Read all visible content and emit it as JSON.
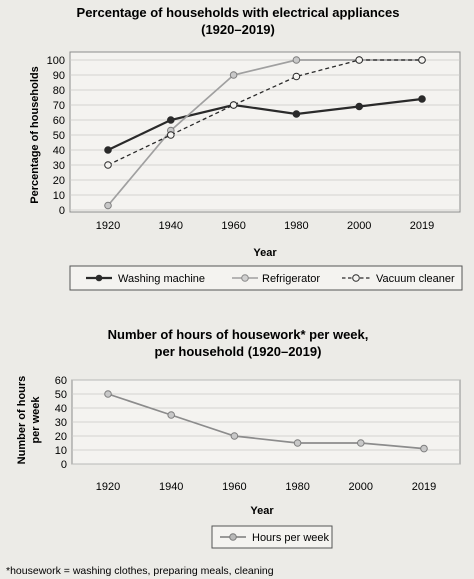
{
  "chart_data": [
    {
      "type": "line",
      "title": "Percentage of households with electrical appliances",
      "subtitle": "(1920–2019)",
      "xlabel": "Year",
      "ylabel": "Percentage of households",
      "categories": [
        "1920",
        "1940",
        "1960",
        "1980",
        "2000",
        "2019"
      ],
      "ylim": [
        0,
        100
      ],
      "yticks": [
        "0",
        "10",
        "20",
        "30",
        "40",
        "50",
        "60",
        "70",
        "80",
        "90",
        "100"
      ],
      "series": [
        {
          "name": "Washing machine",
          "values": [
            40,
            60,
            70,
            64,
            69,
            74
          ],
          "color": "#2a2a2a",
          "style": "solid",
          "marker": "filled"
        },
        {
          "name": "Refrigerator",
          "values": [
            3,
            53,
            90,
            100,
            100,
            100
          ],
          "color": "#a0a0a0",
          "style": "solid",
          "marker": "grey"
        },
        {
          "name": "Vacuum cleaner",
          "values": [
            30,
            50,
            70,
            89,
            100,
            100
          ],
          "color": "#2a2a2a",
          "style": "dashed",
          "marker": "open"
        }
      ],
      "legend_placement": "bottom"
    },
    {
      "type": "line",
      "title": "Number of hours of housework* per week,",
      "subtitle": "per household (1920–2019)",
      "xlabel": "Year",
      "ylabel": [
        "Number of hours",
        "per week"
      ],
      "categories": [
        "1920",
        "1940",
        "1960",
        "1980",
        "2000",
        "2019"
      ],
      "ylim": [
        0,
        60
      ],
      "yticks": [
        "0",
        "10",
        "20",
        "30",
        "40",
        "50",
        "60"
      ],
      "series": [
        {
          "name": "Hours per week",
          "values": [
            50,
            35,
            20,
            15,
            15,
            11
          ],
          "color": "#8c8c8c",
          "style": "solid",
          "marker": "grey"
        }
      ],
      "legend_placement": "bottom"
    }
  ],
  "footnote": "*housework = washing clothes, preparing meals, cleaning"
}
